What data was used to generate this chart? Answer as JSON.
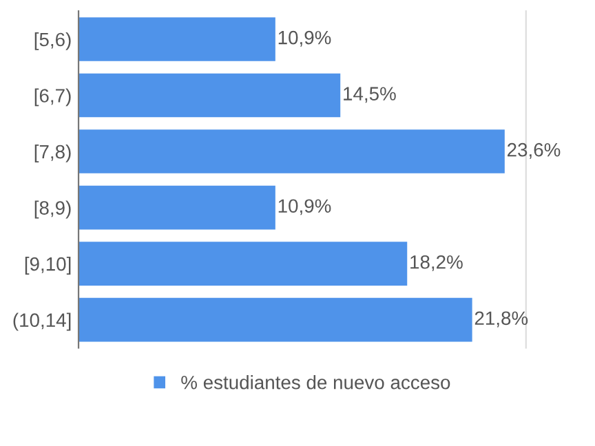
{
  "chart_data": {
    "type": "bar",
    "orientation": "horizontal",
    "categories": [
      "[5,6)",
      "[6,7)",
      "[7,8)",
      "[8,9)",
      "[9,10]",
      "(10,14]"
    ],
    "series": [
      {
        "name": "% estudiantes de nuevo acceso",
        "color": "#4f93ea",
        "values": [
          10.9,
          14.5,
          23.6,
          10.9,
          18.2,
          21.8
        ],
        "value_labels": [
          "10,9%",
          "14,5%",
          "23,6%",
          "10,9%",
          "18,2%",
          "21,8%"
        ]
      }
    ],
    "legend": "bottom",
    "grid": false
  }
}
